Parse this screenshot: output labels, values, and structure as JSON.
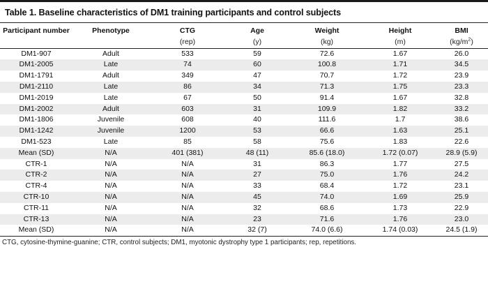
{
  "title": "Table 1. Baseline characteristics of DM1 training participants and control subjects",
  "headers": [
    "Participant number",
    "Phenotype",
    "CTG",
    "Age",
    "Weight",
    "Height",
    "BMI"
  ],
  "units": {
    "participant": "",
    "phenotype": "",
    "ctg": "(rep)",
    "age": "(y)",
    "weight": "(kg)",
    "height": "(m)",
    "bmi_prefix": "(kg/m",
    "bmi_sup": "2",
    "bmi_suffix": ")"
  },
  "rows": [
    [
      "DM1-907",
      "Adult",
      "533",
      "59",
      "72.6",
      "1.67",
      "26.0"
    ],
    [
      "DM1-2005",
      "Late",
      "74",
      "60",
      "100.8",
      "1.71",
      "34.5"
    ],
    [
      "DM1-1791",
      "Adult",
      "349",
      "47",
      "70.7",
      "1.72",
      "23.9"
    ],
    [
      "DM1-2110",
      "Late",
      "86",
      "34",
      "71.3",
      "1.75",
      "23.3"
    ],
    [
      "DM1-2019",
      "Late",
      "67",
      "50",
      "91.4",
      "1.67",
      "32.8"
    ],
    [
      "DM1-2002",
      "Adult",
      "603",
      "31",
      "109.9",
      "1.82",
      "33.2"
    ],
    [
      "DM1-1806",
      "Juvenile",
      "608",
      "40",
      "111.6",
      "1.7",
      "38.6"
    ],
    [
      "DM1-1242",
      "Juvenile",
      "1200",
      "53",
      "66.6",
      "1.63",
      "25.1"
    ],
    [
      "DM1-523",
      "Late",
      "85",
      "58",
      "75.6",
      "1.83",
      "22.6"
    ],
    [
      "Mean (SD)",
      "N/A",
      "401 (381)",
      "48 (11)",
      "85.6 (18.0)",
      "1.72 (0.07)",
      "28.9 (5.9)"
    ],
    [
      "CTR-1",
      "N/A",
      "N/A",
      "31",
      "86.3",
      "1.77",
      "27.5"
    ],
    [
      "CTR-2",
      "N/A",
      "N/A",
      "27",
      "75.0",
      "1.76",
      "24.2"
    ],
    [
      "CTR-4",
      "N/A",
      "N/A",
      "33",
      "68.4",
      "1.72",
      "23.1"
    ],
    [
      "CTR-10",
      "N/A",
      "N/A",
      "45",
      "74.0",
      "1.69",
      "25.9"
    ],
    [
      "CTR-11",
      "N/A",
      "N/A",
      "32",
      "68.6",
      "1.73",
      "22.9"
    ],
    [
      "CTR-13",
      "N/A",
      "N/A",
      "23",
      "71.6",
      "1.76",
      "23.0"
    ],
    [
      "Mean (SD)",
      "N/A",
      "N/A",
      "32 (7)",
      "74.0 (6.6)",
      "1.74 (0.03)",
      "24.5 (1.9)"
    ]
  ],
  "footnote": "CTG, cytosine-thymine-guanine; CTR, control subjects; DM1, myotonic dystrophy type 1 participants; rep, repetitions."
}
